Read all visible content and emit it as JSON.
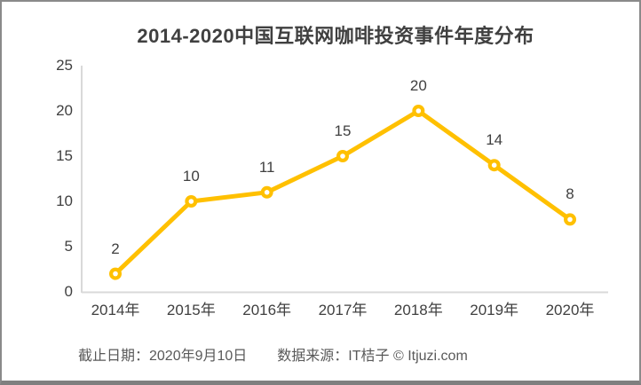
{
  "page": {
    "footer": {
      "deadline": "截止日期：2020年9月10日",
      "source": "数据来源：IT桔子 © Itjuzi.com"
    }
  },
  "chart_data": {
    "type": "line",
    "title": "2014-2020中国互联网咖啡投资事件年度分布",
    "categories": [
      "2014年",
      "2015年",
      "2016年",
      "2017年",
      "2018年",
      "2019年",
      "2020年"
    ],
    "values": [
      2,
      10,
      11,
      15,
      20,
      14,
      8
    ],
    "xlabel": "",
    "ylabel": "",
    "ylim": [
      0,
      25
    ],
    "yticks": [
      0,
      5,
      10,
      15,
      20,
      25
    ],
    "grid": false,
    "legend_position": "none",
    "data_labels_shown": true,
    "colors": {
      "line": "#FFC000",
      "marker_fill": "#FFC000",
      "marker_center": "#FFFFFF",
      "axis_line": "#D9D9D9",
      "title_text": "#404040",
      "tick_text": "#404040",
      "footer_text": "#595959",
      "border": "#8A8A8A"
    }
  }
}
